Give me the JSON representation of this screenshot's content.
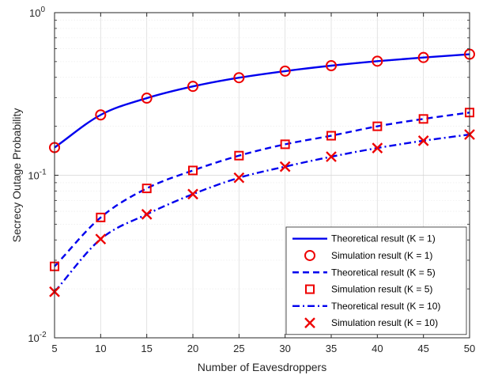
{
  "chart_data": {
    "type": "line",
    "xlabel": "Number of Eavesdroppers",
    "ylabel": "Secrecy Outage Probability",
    "xlim": [
      5,
      50
    ],
    "ylim": [
      0.01,
      1
    ],
    "yscale": "log",
    "grid": true,
    "legend_position": "bottom-right",
    "x_ticks": [
      5,
      10,
      15,
      20,
      25,
      30,
      35,
      40,
      45,
      50
    ],
    "y_ticks": [
      {
        "base": "10",
        "exp": "-2",
        "value": 0.01
      },
      {
        "base": "10",
        "exp": "-1",
        "value": 0.1
      },
      {
        "base": "10",
        "exp": "0",
        "value": 1
      }
    ],
    "x": [
      5,
      10,
      15,
      20,
      25,
      30,
      35,
      40,
      45,
      50
    ],
    "series": [
      {
        "name": "Theoretical result (K = 1)",
        "style": "solid",
        "color": "#0000ee",
        "values": [
          0.148,
          0.235,
          0.298,
          0.352,
          0.398,
          0.437,
          0.472,
          0.503,
          0.53,
          0.555
        ]
      },
      {
        "name": "Simulation result (K = 1)",
        "marker": "circle",
        "color": "#ee0000",
        "values": [
          0.148,
          0.235,
          0.298,
          0.352,
          0.398,
          0.437,
          0.472,
          0.503,
          0.53,
          0.555
        ]
      },
      {
        "name": "Theoretical result (K = 5)",
        "style": "dashed",
        "color": "#0000ee",
        "values": [
          0.0275,
          0.055,
          0.083,
          0.107,
          0.132,
          0.155,
          0.175,
          0.2,
          0.222,
          0.243
        ]
      },
      {
        "name": "Simulation result (K = 5)",
        "marker": "square",
        "color": "#ee0000",
        "values": [
          0.0275,
          0.055,
          0.083,
          0.107,
          0.132,
          0.155,
          0.175,
          0.2,
          0.222,
          0.243
        ]
      },
      {
        "name": "Theoretical result (K = 10)",
        "style": "dashdot",
        "color": "#0000ee",
        "values": [
          0.0192,
          0.0405,
          0.0575,
          0.0765,
          0.0965,
          0.113,
          0.13,
          0.147,
          0.163,
          0.178
        ]
      },
      {
        "name": "Simulation result (K = 10)",
        "marker": "x",
        "color": "#ee0000",
        "values": [
          0.0192,
          0.0405,
          0.0575,
          0.0765,
          0.0965,
          0.113,
          0.13,
          0.147,
          0.163,
          0.178
        ]
      }
    ]
  }
}
